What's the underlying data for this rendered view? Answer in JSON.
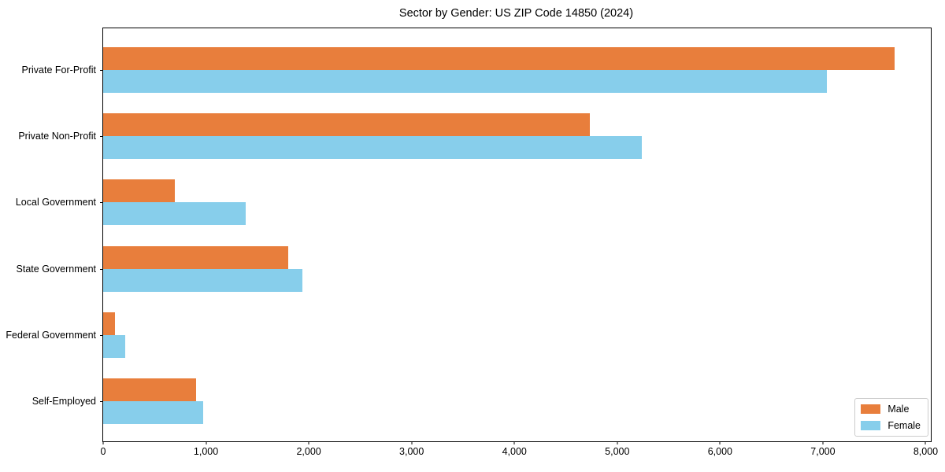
{
  "chart_data": {
    "type": "bar",
    "orientation": "horizontal",
    "title": "Sector by Gender: US ZIP Code 14850 (2024)",
    "xlabel": "",
    "ylabel": "",
    "categories": [
      "Private For-Profit",
      "Private Non-Profit",
      "Local Government",
      "State Government",
      "Federal Government",
      "Self-Employed"
    ],
    "series": [
      {
        "name": "Male",
        "color": "#e87e3c",
        "values": [
          7700,
          4730,
          700,
          1800,
          115,
          900
        ]
      },
      {
        "name": "Female",
        "color": "#87ceeb",
        "values": [
          7040,
          5240,
          1385,
          1940,
          215,
          970
        ]
      }
    ],
    "xlim": [
      0,
      8050
    ],
    "xticks": [
      0,
      1000,
      2000,
      3000,
      4000,
      5000,
      6000,
      7000,
      8000
    ],
    "xtick_labels": [
      "0",
      "1,000",
      "2,000",
      "3,000",
      "4,000",
      "5,000",
      "6,000",
      "7,000",
      "8,000"
    ],
    "grid": false,
    "legend": {
      "position": "lower right",
      "entries": [
        "Male",
        "Female"
      ]
    }
  }
}
